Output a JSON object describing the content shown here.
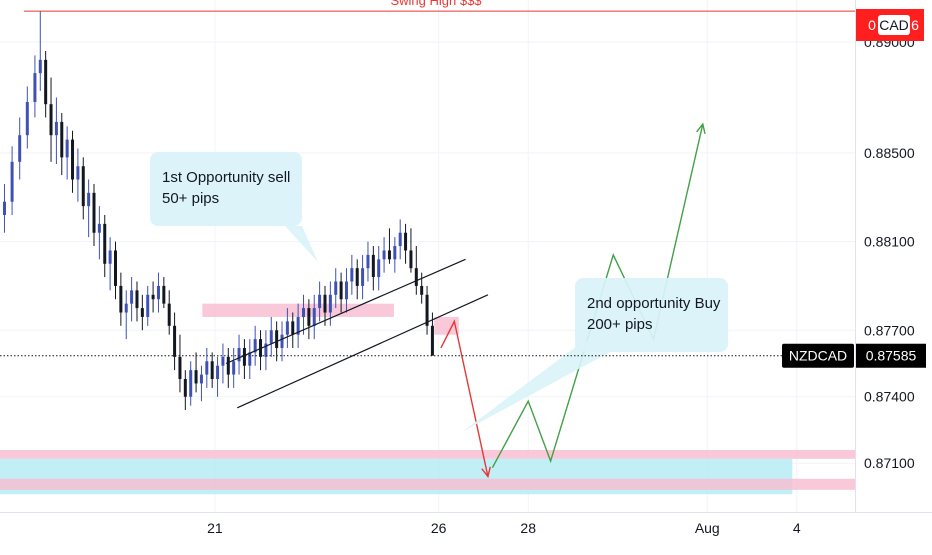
{
  "chart_data": {
    "type": "candlestick",
    "symbol": "NZDCAD",
    "last_price_label": "0.87585",
    "last_price": 0.87585,
    "currency_badge": "CAD",
    "swing_badge_left": "0",
    "swing_badge_right": "6",
    "swing_high_label": "Swing High $$$",
    "swing_high_price": 0.8914,
    "y_ticks": [
      "0.89000",
      "0.88500",
      "0.88100",
      "0.87700",
      "0.87400",
      "0.87100"
    ],
    "y_tick_values": [
      0.89,
      0.885,
      0.881,
      0.877,
      0.874,
      0.871
    ],
    "x_ticks": [
      {
        "label": "21",
        "t": 21
      },
      {
        "label": "26",
        "t": 26
      },
      {
        "label": "28",
        "t": 28
      },
      {
        "label": "Aug",
        "t": 32
      },
      {
        "label": "4",
        "t": 34
      }
    ],
    "x_range": [
      16.2,
      35.3
    ],
    "y_range": [
      0.8688,
      0.8919
    ],
    "candles": [
      [
        16.3,
        0.8822,
        0.8836,
        0.8814,
        0.8828
      ],
      [
        16.47,
        0.8828,
        0.8853,
        0.8822,
        0.8846
      ],
      [
        16.64,
        0.8846,
        0.8866,
        0.8838,
        0.8858
      ],
      [
        16.81,
        0.8858,
        0.888,
        0.8852,
        0.8873
      ],
      [
        16.98,
        0.8873,
        0.8894,
        0.8866,
        0.8886
      ],
      [
        17.1,
        0.8886,
        0.8914,
        0.8878,
        0.8892
      ],
      [
        17.22,
        0.8892,
        0.8896,
        0.8866,
        0.8872
      ],
      [
        17.34,
        0.8872,
        0.8884,
        0.8846,
        0.8858
      ],
      [
        17.46,
        0.8858,
        0.8875,
        0.8845,
        0.8864
      ],
      [
        17.58,
        0.8864,
        0.8868,
        0.884,
        0.8848
      ],
      [
        17.7,
        0.8848,
        0.8862,
        0.8838,
        0.8856
      ],
      [
        17.82,
        0.8856,
        0.886,
        0.8832,
        0.8838
      ],
      [
        17.94,
        0.8838,
        0.8852,
        0.8828,
        0.8844
      ],
      [
        18.06,
        0.8844,
        0.8848,
        0.882,
        0.8826
      ],
      [
        18.18,
        0.8826,
        0.8838,
        0.8812,
        0.8832
      ],
      [
        18.3,
        0.8832,
        0.8836,
        0.8808,
        0.8814
      ],
      [
        18.42,
        0.8814,
        0.8826,
        0.8802,
        0.8818
      ],
      [
        18.54,
        0.8818,
        0.8822,
        0.8794,
        0.88
      ],
      [
        18.66,
        0.88,
        0.8812,
        0.8788,
        0.8806
      ],
      [
        18.78,
        0.8806,
        0.881,
        0.8784,
        0.879
      ],
      [
        18.9,
        0.879,
        0.8796,
        0.8772,
        0.8778
      ],
      [
        19.02,
        0.8778,
        0.8788,
        0.8766,
        0.8782
      ],
      [
        19.14,
        0.8782,
        0.8794,
        0.8774,
        0.8788
      ],
      [
        19.26,
        0.8788,
        0.8792,
        0.8774,
        0.878
      ],
      [
        19.38,
        0.878,
        0.8786,
        0.877,
        0.8776
      ],
      [
        19.5,
        0.8776,
        0.879,
        0.8772,
        0.8786
      ],
      [
        19.62,
        0.8786,
        0.8792,
        0.8778,
        0.8784
      ],
      [
        19.74,
        0.8784,
        0.8796,
        0.8778,
        0.879
      ],
      [
        19.86,
        0.879,
        0.8794,
        0.878,
        0.8782
      ],
      [
        19.98,
        0.8782,
        0.8788,
        0.8768,
        0.8772
      ],
      [
        20.1,
        0.8772,
        0.8778,
        0.8752,
        0.8758
      ],
      [
        20.22,
        0.8758,
        0.8768,
        0.8742,
        0.8748
      ],
      [
        20.34,
        0.8748,
        0.8752,
        0.8734,
        0.874
      ],
      [
        20.46,
        0.874,
        0.8756,
        0.8736,
        0.8752
      ],
      [
        20.58,
        0.8752,
        0.876,
        0.8742,
        0.8746
      ],
      [
        20.7,
        0.8746,
        0.8754,
        0.8738,
        0.875
      ],
      [
        20.82,
        0.875,
        0.8762,
        0.8744,
        0.8756
      ],
      [
        20.94,
        0.8756,
        0.876,
        0.8744,
        0.8748
      ],
      [
        21.06,
        0.8748,
        0.8758,
        0.874,
        0.8754
      ],
      [
        21.18,
        0.8754,
        0.8764,
        0.8746,
        0.8758
      ],
      [
        21.3,
        0.8758,
        0.8762,
        0.8744,
        0.875
      ],
      [
        21.42,
        0.875,
        0.8762,
        0.8744,
        0.8756
      ],
      [
        21.54,
        0.8756,
        0.8768,
        0.875,
        0.8762
      ],
      [
        21.66,
        0.8762,
        0.8766,
        0.8748,
        0.8754
      ],
      [
        21.78,
        0.8754,
        0.8766,
        0.8748,
        0.876
      ],
      [
        21.9,
        0.876,
        0.8772,
        0.8754,
        0.8766
      ],
      [
        22.02,
        0.8766,
        0.877,
        0.8752,
        0.8758
      ],
      [
        22.14,
        0.8758,
        0.877,
        0.8752,
        0.8764
      ],
      [
        22.26,
        0.8764,
        0.8776,
        0.8758,
        0.877
      ],
      [
        22.38,
        0.877,
        0.8774,
        0.8756,
        0.8762
      ],
      [
        22.5,
        0.8762,
        0.8774,
        0.8756,
        0.8768
      ],
      [
        22.62,
        0.8768,
        0.878,
        0.8762,
        0.8774
      ],
      [
        22.74,
        0.8774,
        0.8778,
        0.8762,
        0.8768
      ],
      [
        22.86,
        0.8768,
        0.8782,
        0.8762,
        0.8776
      ],
      [
        22.98,
        0.8776,
        0.8786,
        0.8768,
        0.878
      ],
      [
        23.1,
        0.878,
        0.8784,
        0.8766,
        0.8772
      ],
      [
        23.22,
        0.8772,
        0.8786,
        0.8766,
        0.878
      ],
      [
        23.34,
        0.878,
        0.8792,
        0.8774,
        0.8786
      ],
      [
        23.46,
        0.8786,
        0.879,
        0.8772,
        0.8778
      ],
      [
        23.58,
        0.8778,
        0.8792,
        0.8772,
        0.8786
      ],
      [
        23.7,
        0.8786,
        0.8798,
        0.878,
        0.8792
      ],
      [
        23.82,
        0.8792,
        0.8796,
        0.8778,
        0.8784
      ],
      [
        23.94,
        0.8784,
        0.8798,
        0.8778,
        0.8792
      ],
      [
        24.06,
        0.8792,
        0.8804,
        0.8786,
        0.8798
      ],
      [
        24.18,
        0.8798,
        0.8802,
        0.8784,
        0.879
      ],
      [
        24.3,
        0.879,
        0.8804,
        0.8784,
        0.8798
      ],
      [
        24.42,
        0.8798,
        0.881,
        0.8792,
        0.8804
      ],
      [
        24.54,
        0.8804,
        0.8808,
        0.8788,
        0.8794
      ],
      [
        24.66,
        0.8794,
        0.8808,
        0.8788,
        0.8802
      ],
      [
        24.78,
        0.8802,
        0.8812,
        0.8796,
        0.8806
      ],
      [
        24.9,
        0.8806,
        0.8816,
        0.88,
        0.8802
      ],
      [
        25.02,
        0.8802,
        0.8812,
        0.8796,
        0.8808
      ],
      [
        25.14,
        0.8808,
        0.882,
        0.8802,
        0.8814
      ],
      [
        25.26,
        0.8814,
        0.8818,
        0.88,
        0.8806
      ],
      [
        25.38,
        0.8806,
        0.8816,
        0.8796,
        0.8798
      ],
      [
        25.5,
        0.8798,
        0.8808,
        0.8786,
        0.879
      ],
      [
        25.62,
        0.879,
        0.8796,
        0.8782,
        0.8786
      ],
      [
        25.74,
        0.8786,
        0.879,
        0.8768,
        0.8772
      ],
      [
        25.86,
        0.8772,
        0.8778,
        0.876,
        0.87585
      ]
    ]
  },
  "zones": [
    {
      "name": "supply-zone-1",
      "t0": 20.72,
      "t1": 25.0,
      "p0": 0.8776,
      "p1": 0.8782,
      "fill": "#f8bbd0"
    },
    {
      "name": "supply-zone-2",
      "t0": 25.9,
      "t1": 26.45,
      "p0": 0.8768,
      "p1": 0.8776,
      "fill": "#f8bbd0"
    },
    {
      "name": "demand-zone-upper",
      "t0": 16.2,
      "t1": 35.3,
      "p0": 0.8712,
      "p1": 0.8716,
      "fill": "#f8bbd0"
    },
    {
      "name": "demand-zone-cyan",
      "t0": 16.2,
      "t1": 33.9,
      "p0": 0.8696,
      "p1": 0.8712,
      "fill": "#b2ebf2"
    },
    {
      "name": "demand-zone-lower",
      "t0": 16.2,
      "t1": 35.3,
      "p0": 0.8698,
      "p1": 0.8703,
      "fill": "#f8bbd0"
    }
  ],
  "channel": {
    "upper": [
      [
        21.25,
        0.8755
      ],
      [
        26.6,
        0.8802
      ]
    ],
    "lower": [
      [
        21.5,
        0.8735
      ],
      [
        27.1,
        0.8786
      ]
    ],
    "color": "#131722"
  },
  "sell_path": {
    "points": [
      [
        26.05,
        0.8762
      ],
      [
        26.35,
        0.8774
      ],
      [
        27.1,
        0.8704
      ]
    ],
    "color": "#e53935"
  },
  "buy_path": {
    "points": [
      [
        27.2,
        0.8708
      ],
      [
        28.0,
        0.8738
      ],
      [
        28.5,
        0.8711
      ],
      [
        29.9,
        0.8804
      ],
      [
        30.8,
        0.8766
      ],
      [
        31.9,
        0.8863
      ]
    ],
    "color": "#43a047"
  },
  "notes": [
    {
      "name": "note-sell",
      "lines": [
        "1st Opportunity sell",
        "50+ pips"
      ],
      "fill": "#d9f3f8"
    },
    {
      "name": "note-buy",
      "lines": [
        "2nd opportunity Buy",
        "200+ pips"
      ],
      "fill": "#d9f3f8"
    }
  ],
  "colors": {
    "up_candle": "#3f51b5",
    "down_candle": "#131722",
    "swing_line": "#e53935",
    "badge_red": "#ff1f1f",
    "symbol_badge": "#000000"
  }
}
